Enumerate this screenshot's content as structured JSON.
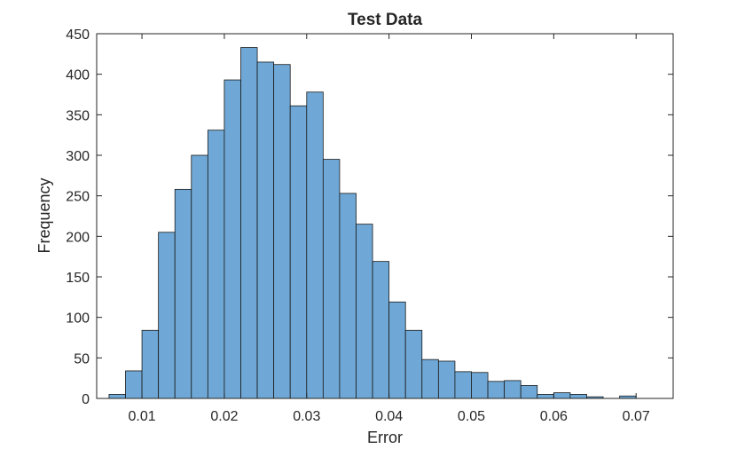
{
  "chart_data": {
    "type": "bar",
    "title": "Test Data",
    "xlabel": "Error",
    "ylabel": "Frequency",
    "xlim": [
      0.0045,
      0.0745
    ],
    "ylim": [
      0,
      450
    ],
    "xticks": [
      0.01,
      0.02,
      0.03,
      0.04,
      0.05,
      0.06,
      0.07
    ],
    "xtick_labels": [
      "0.01",
      "0.02",
      "0.03",
      "0.04",
      "0.05",
      "0.06",
      "0.07"
    ],
    "yticks": [
      0,
      50,
      100,
      150,
      200,
      250,
      300,
      350,
      400,
      450
    ],
    "ytick_labels": [
      "0",
      "50",
      "100",
      "150",
      "200",
      "250",
      "300",
      "350",
      "400",
      "450"
    ],
    "bin_width": 0.002,
    "bin_edges_start": 0.006,
    "values": [
      5,
      34,
      84,
      205,
      258,
      300,
      331,
      393,
      433,
      415,
      412,
      361,
      378,
      295,
      253,
      215,
      169,
      119,
      84,
      48,
      46,
      33,
      32,
      21,
      22,
      16,
      5,
      7,
      5,
      2,
      0,
      3
    ],
    "grid": false,
    "legend": false,
    "colors": {
      "bar_fill": "#6fa8d6",
      "bar_edge": "#1a1a1a",
      "axes": "#262626"
    }
  }
}
